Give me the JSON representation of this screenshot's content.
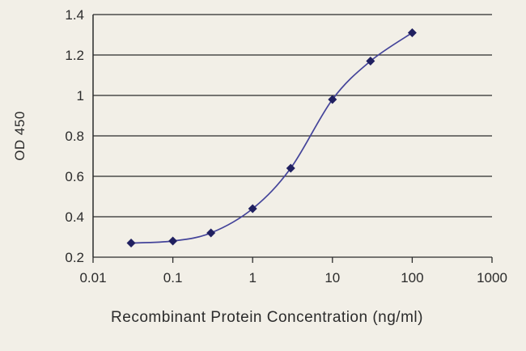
{
  "chart_data": {
    "type": "line",
    "title": "",
    "xlabel": "Recombinant Protein Concentration (ng/ml)",
    "ylabel": "OD 450",
    "x_scale": "log",
    "xlim": [
      0.01,
      1000
    ],
    "ylim": [
      0.2,
      1.4
    ],
    "x_ticks": [
      0.01,
      0.1,
      1,
      10,
      100,
      1000
    ],
    "x_tick_labels": [
      "0.01",
      "0.1",
      "1",
      "10",
      "100",
      "1000"
    ],
    "y_ticks": [
      0.2,
      0.4,
      0.6,
      0.8,
      1.0,
      1.2,
      1.4
    ],
    "y_tick_labels": [
      "0.2",
      "0.4",
      "0.6",
      "0.8",
      "1",
      "1.2",
      "1.4"
    ],
    "grid": "horizontal",
    "legend": "none",
    "series": [
      {
        "name": "OD 450",
        "x": [
          0.03,
          0.1,
          0.3,
          1,
          3,
          10,
          30,
          100
        ],
        "y": [
          0.27,
          0.28,
          0.32,
          0.44,
          0.64,
          0.98,
          1.17,
          1.31
        ],
        "line_color": "#44449a",
        "marker": "diamond",
        "marker_color": "#202060"
      }
    ],
    "colors": {
      "background": "#f2efe7",
      "axis": "#2b2b2b",
      "text": "#2b2b2b"
    }
  }
}
